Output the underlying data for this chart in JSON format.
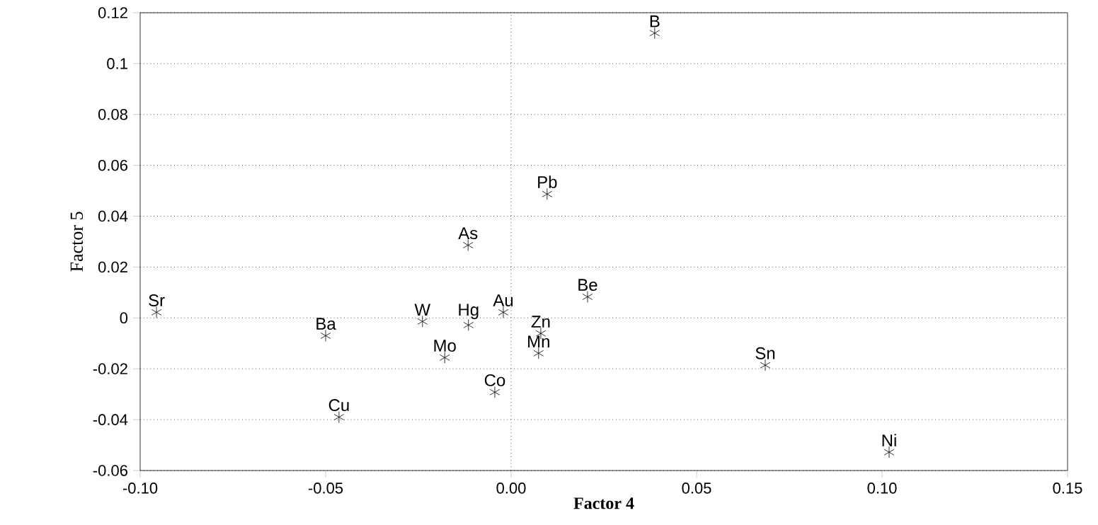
{
  "chart_data": {
    "type": "scatter",
    "xlabel": "Factor 4",
    "ylabel": "Factor 5",
    "marker": "cross",
    "grid": "y",
    "color": "#000000",
    "xlim": [
      -0.1,
      0.15
    ],
    "ylim": [
      -0.06,
      0.12
    ],
    "xticks": [
      {
        "value": -0.1,
        "label": "-0.10"
      },
      {
        "value": -0.05,
        "label": "-0.05"
      },
      {
        "value": 0,
        "label": "0.00"
      },
      {
        "value": 0.05,
        "label": "0.05"
      },
      {
        "value": 0.1,
        "label": "0.10"
      },
      {
        "value": 0.15,
        "label": "0.15"
      }
    ],
    "yticks": [
      -0.06,
      -0.04,
      -0.02,
      0,
      0.02,
      0.04,
      0.06,
      0.08,
      0.1,
      0.12
    ],
    "ref_lines": [
      {
        "axis": "x",
        "value": 0,
        "line_style": "dotted"
      }
    ],
    "x": [
      -0.0956,
      -0.05,
      -0.0464,
      -0.0239,
      -0.0179,
      -0.0115,
      -0.0116,
      -0.0021,
      -0.0044,
      0.008,
      0.0074,
      0.0097,
      0.0206,
      0.0387,
      0.0685,
      0.1019
    ],
    "values": [
      0.0022,
      -0.007,
      -0.039,
      -0.0014,
      -0.0156,
      -0.0028,
      0.0286,
      0.0022,
      -0.0292,
      -0.0061,
      -0.0139,
      0.0487,
      0.0083,
      0.112,
      -0.0186,
      -0.0528
    ],
    "annotations": [
      {
        "text": "Sr",
        "x": -0.0956,
        "y": 0.0022
      },
      {
        "text": "Ba",
        "x": -0.05,
        "y": -0.007
      },
      {
        "text": "Cu",
        "x": -0.0464,
        "y": -0.039
      },
      {
        "text": "W",
        "x": -0.0239,
        "y": -0.0014
      },
      {
        "text": "Mo",
        "x": -0.0179,
        "y": -0.0156
      },
      {
        "text": "Hg",
        "x": -0.0115,
        "y": -0.0028
      },
      {
        "text": "As",
        "x": -0.0116,
        "y": 0.0286
      },
      {
        "text": "Au",
        "x": -0.0021,
        "y": 0.0022
      },
      {
        "text": "Co",
        "x": -0.0044,
        "y": -0.0292
      },
      {
        "text": "Zn",
        "x": 0.008,
        "y": -0.0061
      },
      {
        "text": "Mn",
        "x": 0.0074,
        "y": -0.0139
      },
      {
        "text": "Pb",
        "x": 0.0097,
        "y": 0.0487
      },
      {
        "text": "Be",
        "x": 0.0206,
        "y": 0.0083
      },
      {
        "text": "B",
        "x": 0.0387,
        "y": 0.112
      },
      {
        "text": "Sn",
        "x": 0.0685,
        "y": -0.0186
      },
      {
        "text": "Ni",
        "x": 0.1019,
        "y": -0.0528
      }
    ]
  }
}
